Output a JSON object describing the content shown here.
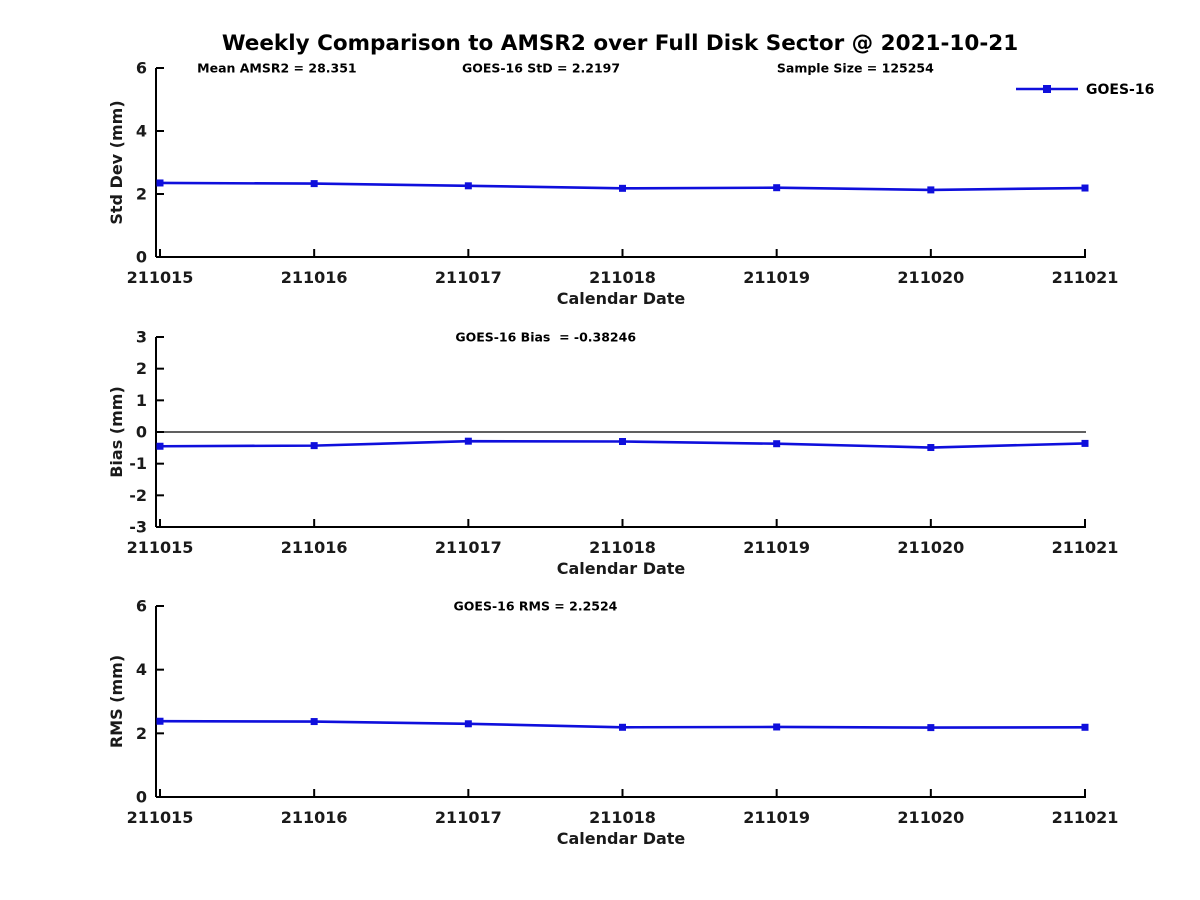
{
  "title": "Weekly Comparison to AMSR2 over Full Disk Sector @ 2021-10-21",
  "colors": {
    "series": "#0f0fdc",
    "axis": "#000000",
    "text": "#000000",
    "zero_line": "#000000",
    "background": "#ffffff"
  },
  "legend": {
    "label": "GOES-16"
  },
  "chart_data": [
    {
      "type": "line",
      "name": "std-dev",
      "title": "",
      "xlabel": "Calendar Date",
      "ylabel": "Std Dev (mm)",
      "ylim": [
        0,
        6
      ],
      "yticks": [
        0,
        2,
        4,
        6
      ],
      "categories": [
        "211015",
        "211016",
        "211017",
        "211018",
        "211019",
        "211020",
        "211021"
      ],
      "annotations": [
        "Mean AMSR2 = 28.351",
        "GOES-16 StD = 2.2197",
        "Sample Size = 125254"
      ],
      "legend_position": "upper-right-outside",
      "grid": false,
      "series": [
        {
          "name": "GOES-16",
          "marker": "square",
          "values": [
            2.35,
            2.33,
            2.26,
            2.18,
            2.2,
            2.13,
            2.19
          ]
        }
      ]
    },
    {
      "type": "line",
      "name": "bias",
      "title": "",
      "xlabel": "Calendar Date",
      "ylabel": "Bias (mm)",
      "ylim": [
        -3,
        3
      ],
      "yticks": [
        -3,
        -2,
        -1,
        0,
        1,
        2,
        3
      ],
      "zero_line": true,
      "categories": [
        "211015",
        "211016",
        "211017",
        "211018",
        "211019",
        "211020",
        "211021"
      ],
      "annotations": [
        "GOES-16 Bias  = -0.38246"
      ],
      "grid": false,
      "series": [
        {
          "name": "GOES-16",
          "marker": "square",
          "values": [
            -0.45,
            -0.43,
            -0.29,
            -0.3,
            -0.37,
            -0.49,
            -0.36
          ]
        }
      ]
    },
    {
      "type": "line",
      "name": "rms",
      "title": "",
      "xlabel": "Calendar Date",
      "ylabel": "RMS (mm)",
      "ylim": [
        0,
        6
      ],
      "yticks": [
        0,
        2,
        4,
        6
      ],
      "categories": [
        "211015",
        "211016",
        "211017",
        "211018",
        "211019",
        "211020",
        "211021"
      ],
      "annotations": [
        "GOES-16 RMS = 2.2524"
      ],
      "grid": false,
      "series": [
        {
          "name": "GOES-16",
          "marker": "square",
          "values": [
            2.38,
            2.37,
            2.3,
            2.19,
            2.2,
            2.18,
            2.19
          ]
        }
      ]
    }
  ]
}
